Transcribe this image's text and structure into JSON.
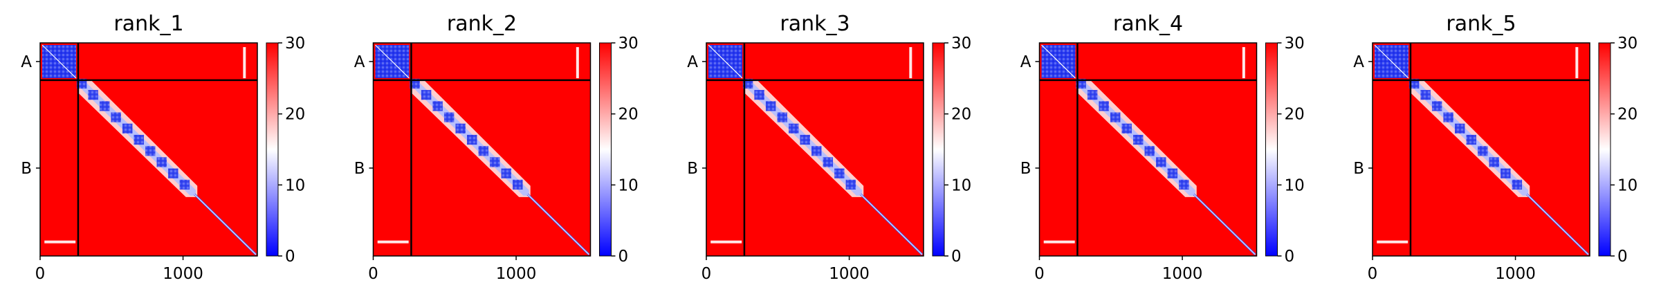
{
  "chart_data": [
    {
      "type": "heatmap",
      "title": "rank_1",
      "xlim": [
        0,
        1520
      ],
      "x_ticks": [
        0,
        1000
      ],
      "x_tick_labels": [
        "0",
        "1000"
      ],
      "chain_boundary": 266,
      "y_tick_labels": [
        "A",
        "B"
      ],
      "y_tick_positions": [
        133,
        893
      ],
      "colorbar": {
        "range": [
          0,
          30
        ],
        "ticks": [
          0,
          10,
          20,
          30
        ],
        "tick_labels": [
          "0",
          "10",
          "20",
          "30"
        ],
        "colormap": [
          "#0000ff",
          "#ffffff",
          "#ff0000"
        ]
      }
    },
    {
      "type": "heatmap",
      "title": "rank_2",
      "xlim": [
        0,
        1520
      ],
      "x_ticks": [
        0,
        1000
      ],
      "x_tick_labels": [
        "0",
        "1000"
      ],
      "chain_boundary": 266,
      "y_tick_labels": [
        "A",
        "B"
      ],
      "y_tick_positions": [
        133,
        893
      ],
      "colorbar": {
        "range": [
          0,
          30
        ],
        "ticks": [
          0,
          10,
          20,
          30
        ],
        "tick_labels": [
          "0",
          "10",
          "20",
          "30"
        ],
        "colormap": [
          "#0000ff",
          "#ffffff",
          "#ff0000"
        ]
      }
    },
    {
      "type": "heatmap",
      "title": "rank_3",
      "xlim": [
        0,
        1520
      ],
      "x_ticks": [
        0,
        1000
      ],
      "x_tick_labels": [
        "0",
        "1000"
      ],
      "chain_boundary": 266,
      "y_tick_labels": [
        "A",
        "B"
      ],
      "y_tick_positions": [
        133,
        893
      ],
      "colorbar": {
        "range": [
          0,
          30
        ],
        "ticks": [
          0,
          10,
          20,
          30
        ],
        "tick_labels": [
          "0",
          "10",
          "20",
          "30"
        ],
        "colormap": [
          "#0000ff",
          "#ffffff",
          "#ff0000"
        ]
      }
    },
    {
      "type": "heatmap",
      "title": "rank_4",
      "xlim": [
        0,
        1520
      ],
      "x_ticks": [
        0,
        1000
      ],
      "x_tick_labels": [
        "0",
        "1000"
      ],
      "chain_boundary": 266,
      "y_tick_labels": [
        "A",
        "B"
      ],
      "y_tick_positions": [
        133,
        893
      ],
      "colorbar": {
        "range": [
          0,
          30
        ],
        "ticks": [
          0,
          10,
          20,
          30
        ],
        "tick_labels": [
          "0",
          "10",
          "20",
          "30"
        ],
        "colormap": [
          "#0000ff",
          "#ffffff",
          "#ff0000"
        ]
      }
    },
    {
      "type": "heatmap",
      "title": "rank_5",
      "xlim": [
        0,
        1520
      ],
      "x_ticks": [
        0,
        1000
      ],
      "x_tick_labels": [
        "0",
        "1000"
      ],
      "chain_boundary": 266,
      "y_tick_labels": [
        "A",
        "B"
      ],
      "y_tick_positions": [
        133,
        893
      ],
      "colorbar": {
        "range": [
          0,
          30
        ],
        "ticks": [
          0,
          10,
          20,
          30
        ],
        "tick_labels": [
          "0",
          "10",
          "20",
          "30"
        ],
        "colormap": [
          "#0000ff",
          "#ffffff",
          "#ff0000"
        ]
      }
    }
  ]
}
